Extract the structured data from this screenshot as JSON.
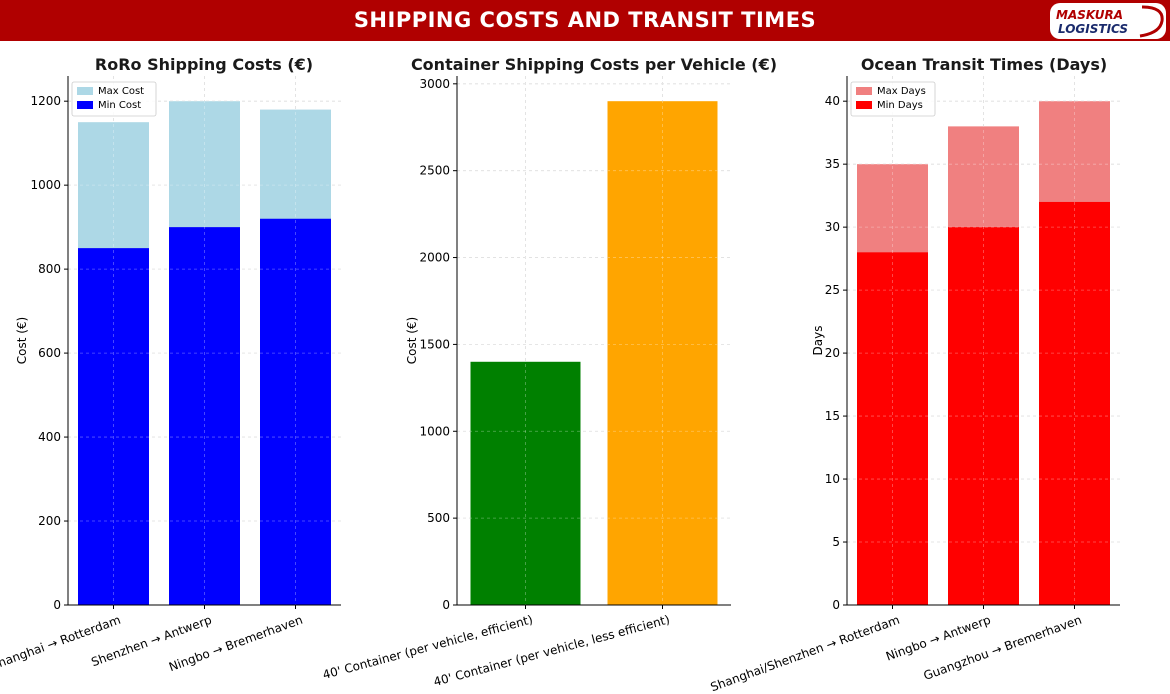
{
  "banner": {
    "title": "SHIPPING COSTS AND TRANSIT TIMES",
    "color": "#b00000"
  },
  "logo": {
    "line1": "MASKURA",
    "line2": "LOGISTICS"
  },
  "chart_data": [
    {
      "type": "bar",
      "stacked": "overlay",
      "title": "RoRo Shipping Costs (€)",
      "xlabel": "",
      "ylabel": "Cost (€)",
      "ylim": [
        0,
        1260
      ],
      "yticks": [
        0,
        200,
        400,
        600,
        800,
        1000,
        1200
      ],
      "grid": true,
      "legend_placement": "top-left",
      "categories": [
        "Shanghai → Rotterdam",
        "Shenzhen → Antwerp",
        "Ningbo → Bremerhaven"
      ],
      "series": [
        {
          "name": "Max Cost",
          "values": [
            1150,
            1200,
            1180
          ],
          "color": "#add8e6"
        },
        {
          "name": "Min Cost",
          "values": [
            850,
            900,
            920
          ],
          "color": "#0000ff"
        }
      ]
    },
    {
      "type": "bar",
      "title": "Container Shipping Costs per Vehicle (€)",
      "xlabel": "",
      "ylabel": "Cost (€)",
      "ylim": [
        0,
        3045
      ],
      "yticks": [
        0,
        500,
        1000,
        1500,
        2000,
        2500,
        3000
      ],
      "grid": true,
      "categories": [
        "40' Container (per vehicle, efficient)",
        "40' Container (per vehicle, less efficient)"
      ],
      "values": [
        1400,
        2900
      ],
      "colors": [
        "#008000",
        "#ffa500"
      ]
    },
    {
      "type": "bar",
      "stacked": "overlay",
      "title": "Ocean Transit Times (Days)",
      "xlabel": "",
      "ylabel": "Days",
      "ylim": [
        0,
        42
      ],
      "yticks": [
        0,
        5,
        10,
        15,
        20,
        25,
        30,
        35,
        40
      ],
      "grid": true,
      "legend_placement": "top-left",
      "categories": [
        "Shanghai/Shenzhen → Rotterdam",
        "Ningbo → Antwerp",
        "Guangzhou → Bremerhaven"
      ],
      "series": [
        {
          "name": "Max Days",
          "values": [
            35,
            38,
            40
          ],
          "color": "#f08080"
        },
        {
          "name": "Min Days",
          "values": [
            28,
            30,
            32
          ],
          "color": "#ff0000"
        }
      ]
    }
  ]
}
